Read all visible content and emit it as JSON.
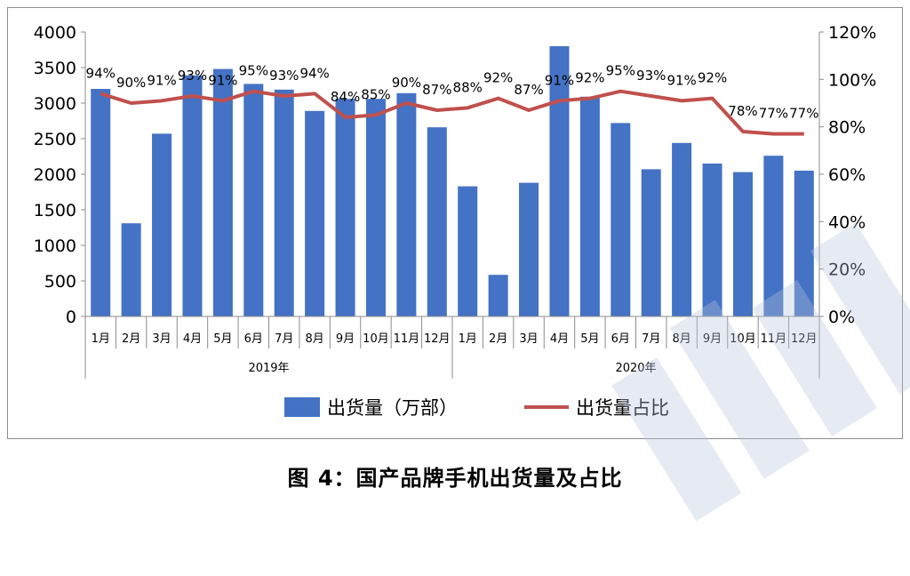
{
  "caption": "图 4：国产品牌手机出货量及占比",
  "chart_data": {
    "type": "bar+line",
    "groups": [
      {
        "label": "2019年",
        "months": [
          "1月",
          "2月",
          "3月",
          "4月",
          "5月",
          "6月",
          "7月",
          "8月",
          "9月",
          "10月",
          "11月",
          "12月"
        ]
      },
      {
        "label": "2020年",
        "months": [
          "1月",
          "2月",
          "3月",
          "4月",
          "5月",
          "6月",
          "7月",
          "8月",
          "9月",
          "10月",
          "11月",
          "12月"
        ]
      }
    ],
    "series": [
      {
        "name": "出货量（万部）",
        "type": "bar",
        "axis": "left",
        "color": "#4472c4",
        "values": [
          3200,
          1310,
          2570,
          3390,
          3480,
          3270,
          3190,
          2890,
          3060,
          3060,
          3140,
          2660,
          1830,
          585,
          1880,
          3800,
          3090,
          2720,
          2070,
          2440,
          2150,
          2030,
          2260,
          2050
        ]
      },
      {
        "name": "出货量占比",
        "type": "line",
        "axis": "right",
        "color": "#c0504d",
        "values": [
          94,
          90,
          91,
          93,
          91,
          95,
          93,
          94,
          84,
          85,
          90,
          87,
          88,
          92,
          87,
          91,
          92,
          95,
          93,
          91,
          92,
          78,
          77,
          77
        ],
        "labels": [
          "94%",
          "90%",
          "91%",
          "93%",
          "91%",
          "95%",
          "93%",
          "94%",
          "84%",
          "85%",
          "90%",
          "87%",
          "88%",
          "92%",
          "87%",
          "91%",
          "92%",
          "95%",
          "93%",
          "91%",
          "92%",
          "78%",
          "77%",
          "77%"
        ]
      }
    ],
    "left_axis": {
      "min": 0,
      "max": 4000,
      "step": 500,
      "ticks": [
        "0",
        "500",
        "1000",
        "1500",
        "2000",
        "2500",
        "3000",
        "3500",
        "4000"
      ]
    },
    "right_axis": {
      "min": 0,
      "max": 120,
      "step": 20,
      "ticks": [
        "0%",
        "20%",
        "40%",
        "60%",
        "80%",
        "100%",
        "120%"
      ]
    },
    "legend_position": "bottom",
    "grid": false
  }
}
